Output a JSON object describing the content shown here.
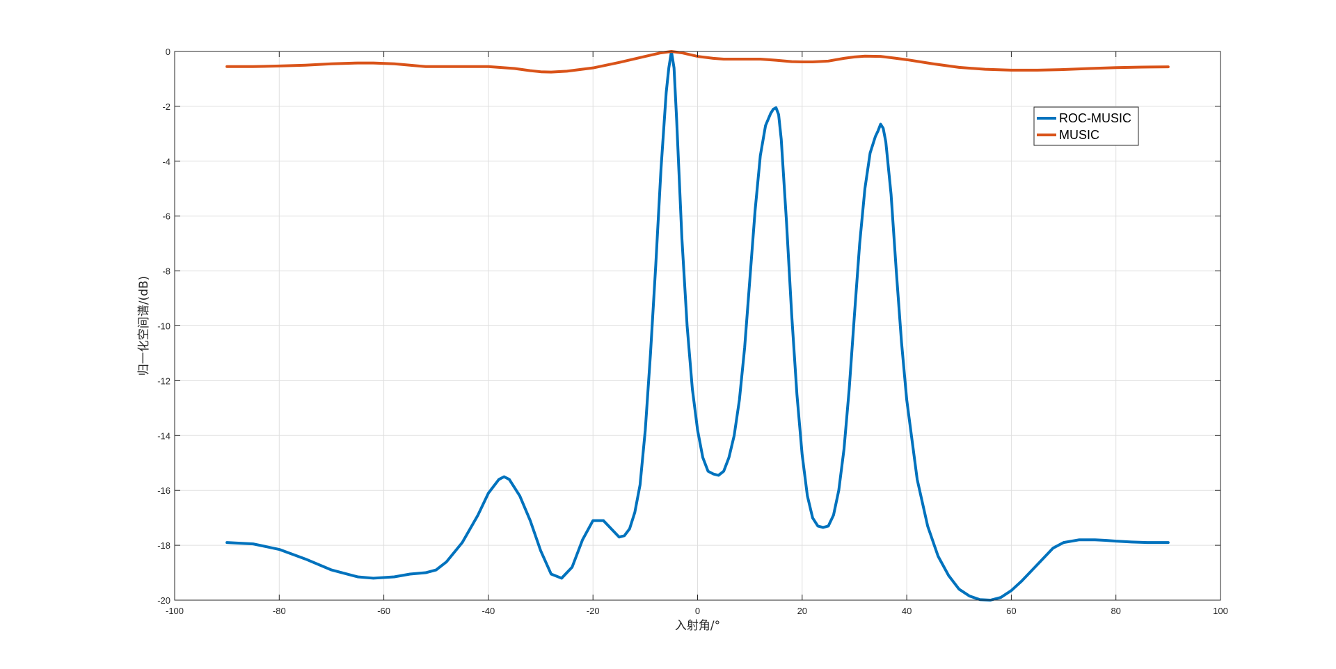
{
  "chart_data": {
    "type": "line",
    "title": "",
    "xlabel": "入射角/°",
    "ylabel": "归一化空间谱/(dB)",
    "xlim": [
      -100,
      100
    ],
    "ylim": [
      -20,
      0
    ],
    "x_ticks": [
      -100,
      -80,
      -60,
      -40,
      -20,
      0,
      20,
      40,
      60,
      80,
      100
    ],
    "y_ticks": [
      0,
      -2,
      -4,
      -6,
      -8,
      -10,
      -12,
      -14,
      -16,
      -18,
      -20
    ],
    "grid": true,
    "legend_position": "top-right",
    "series": [
      {
        "name": "ROC-MUSIC",
        "color": "#0072BD",
        "x": [
          -90,
          -85,
          -80,
          -75,
          -70,
          -65,
          -62,
          -58,
          -55,
          -52,
          -50,
          -48,
          -45,
          -42,
          -40,
          -38,
          -37,
          -36,
          -34,
          -32,
          -30,
          -28,
          -26,
          -24,
          -22,
          -20,
          -18,
          -16,
          -15,
          -14,
          -13,
          -12,
          -11,
          -10,
          -9,
          -8,
          -7,
          -6,
          -5.5,
          -5,
          -4.5,
          -4,
          -3,
          -2,
          -1,
          0,
          1,
          2,
          3,
          4,
          5,
          6,
          7,
          8,
          9,
          10,
          11,
          12,
          13,
          14,
          14.5,
          15,
          15.5,
          16,
          17,
          18,
          19,
          20,
          21,
          22,
          23,
          24,
          25,
          26,
          27,
          28,
          29,
          30,
          31,
          32,
          33,
          34,
          34.5,
          35,
          35.5,
          36,
          37,
          38,
          39,
          40,
          42,
          44,
          46,
          48,
          50,
          52,
          54,
          56,
          58,
          60,
          62,
          65,
          68,
          70,
          73,
          76,
          78,
          80,
          83,
          86,
          90
        ],
        "y": [
          -17.9,
          -17.95,
          -18.15,
          -18.5,
          -18.9,
          -19.15,
          -19.2,
          -19.15,
          -19.05,
          -19.0,
          -18.9,
          -18.6,
          -17.9,
          -16.9,
          -16.1,
          -15.6,
          -15.5,
          -15.6,
          -16.2,
          -17.1,
          -18.2,
          -19.05,
          -19.2,
          -18.8,
          -17.8,
          -17.1,
          -17.1,
          -17.5,
          -17.7,
          -17.65,
          -17.4,
          -16.8,
          -15.8,
          -13.8,
          -11.0,
          -7.8,
          -4.3,
          -1.5,
          -0.6,
          0.0,
          -0.6,
          -2.5,
          -6.8,
          -10.0,
          -12.3,
          -13.8,
          -14.8,
          -15.3,
          -15.4,
          -15.45,
          -15.3,
          -14.8,
          -14.0,
          -12.7,
          -10.8,
          -8.3,
          -5.8,
          -3.8,
          -2.7,
          -2.25,
          -2.1,
          -2.05,
          -2.3,
          -3.2,
          -6.2,
          -9.6,
          -12.5,
          -14.7,
          -16.2,
          -17.0,
          -17.3,
          -17.35,
          -17.3,
          -16.9,
          -16.0,
          -14.5,
          -12.3,
          -9.6,
          -7.0,
          -5.0,
          -3.7,
          -3.1,
          -2.9,
          -2.65,
          -2.8,
          -3.3,
          -5.2,
          -8.0,
          -10.6,
          -12.7,
          -15.6,
          -17.3,
          -18.4,
          -19.1,
          -19.6,
          -19.85,
          -19.98,
          -20.0,
          -19.9,
          -19.65,
          -19.3,
          -18.7,
          -18.1,
          -17.9,
          -17.8,
          -17.8,
          -17.82,
          -17.85,
          -17.88,
          -17.9,
          -17.9
        ]
      },
      {
        "name": "MUSIC",
        "color": "#D95319",
        "x": [
          -90,
          -85,
          -80,
          -75,
          -70,
          -65,
          -62,
          -58,
          -55,
          -52,
          -50,
          -45,
          -40,
          -35,
          -32,
          -30,
          -28,
          -25,
          -20,
          -15,
          -10,
          -7,
          -5,
          -3,
          0,
          3,
          5,
          8,
          10,
          12,
          15,
          18,
          20,
          22,
          25,
          28,
          30,
          32,
          35,
          38,
          40,
          45,
          50,
          55,
          60,
          65,
          70,
          75,
          80,
          85,
          90
        ],
        "y": [
          -0.55,
          -0.55,
          -0.53,
          -0.5,
          -0.45,
          -0.42,
          -0.42,
          -0.45,
          -0.5,
          -0.55,
          -0.55,
          -0.55,
          -0.55,
          -0.62,
          -0.7,
          -0.74,
          -0.75,
          -0.72,
          -0.6,
          -0.4,
          -0.18,
          -0.05,
          0.0,
          -0.05,
          -0.18,
          -0.25,
          -0.28,
          -0.28,
          -0.28,
          -0.28,
          -0.32,
          -0.37,
          -0.38,
          -0.38,
          -0.35,
          -0.25,
          -0.2,
          -0.17,
          -0.18,
          -0.25,
          -0.3,
          -0.45,
          -0.58,
          -0.65,
          -0.68,
          -0.68,
          -0.66,
          -0.62,
          -0.59,
          -0.57,
          -0.56
        ]
      }
    ]
  }
}
